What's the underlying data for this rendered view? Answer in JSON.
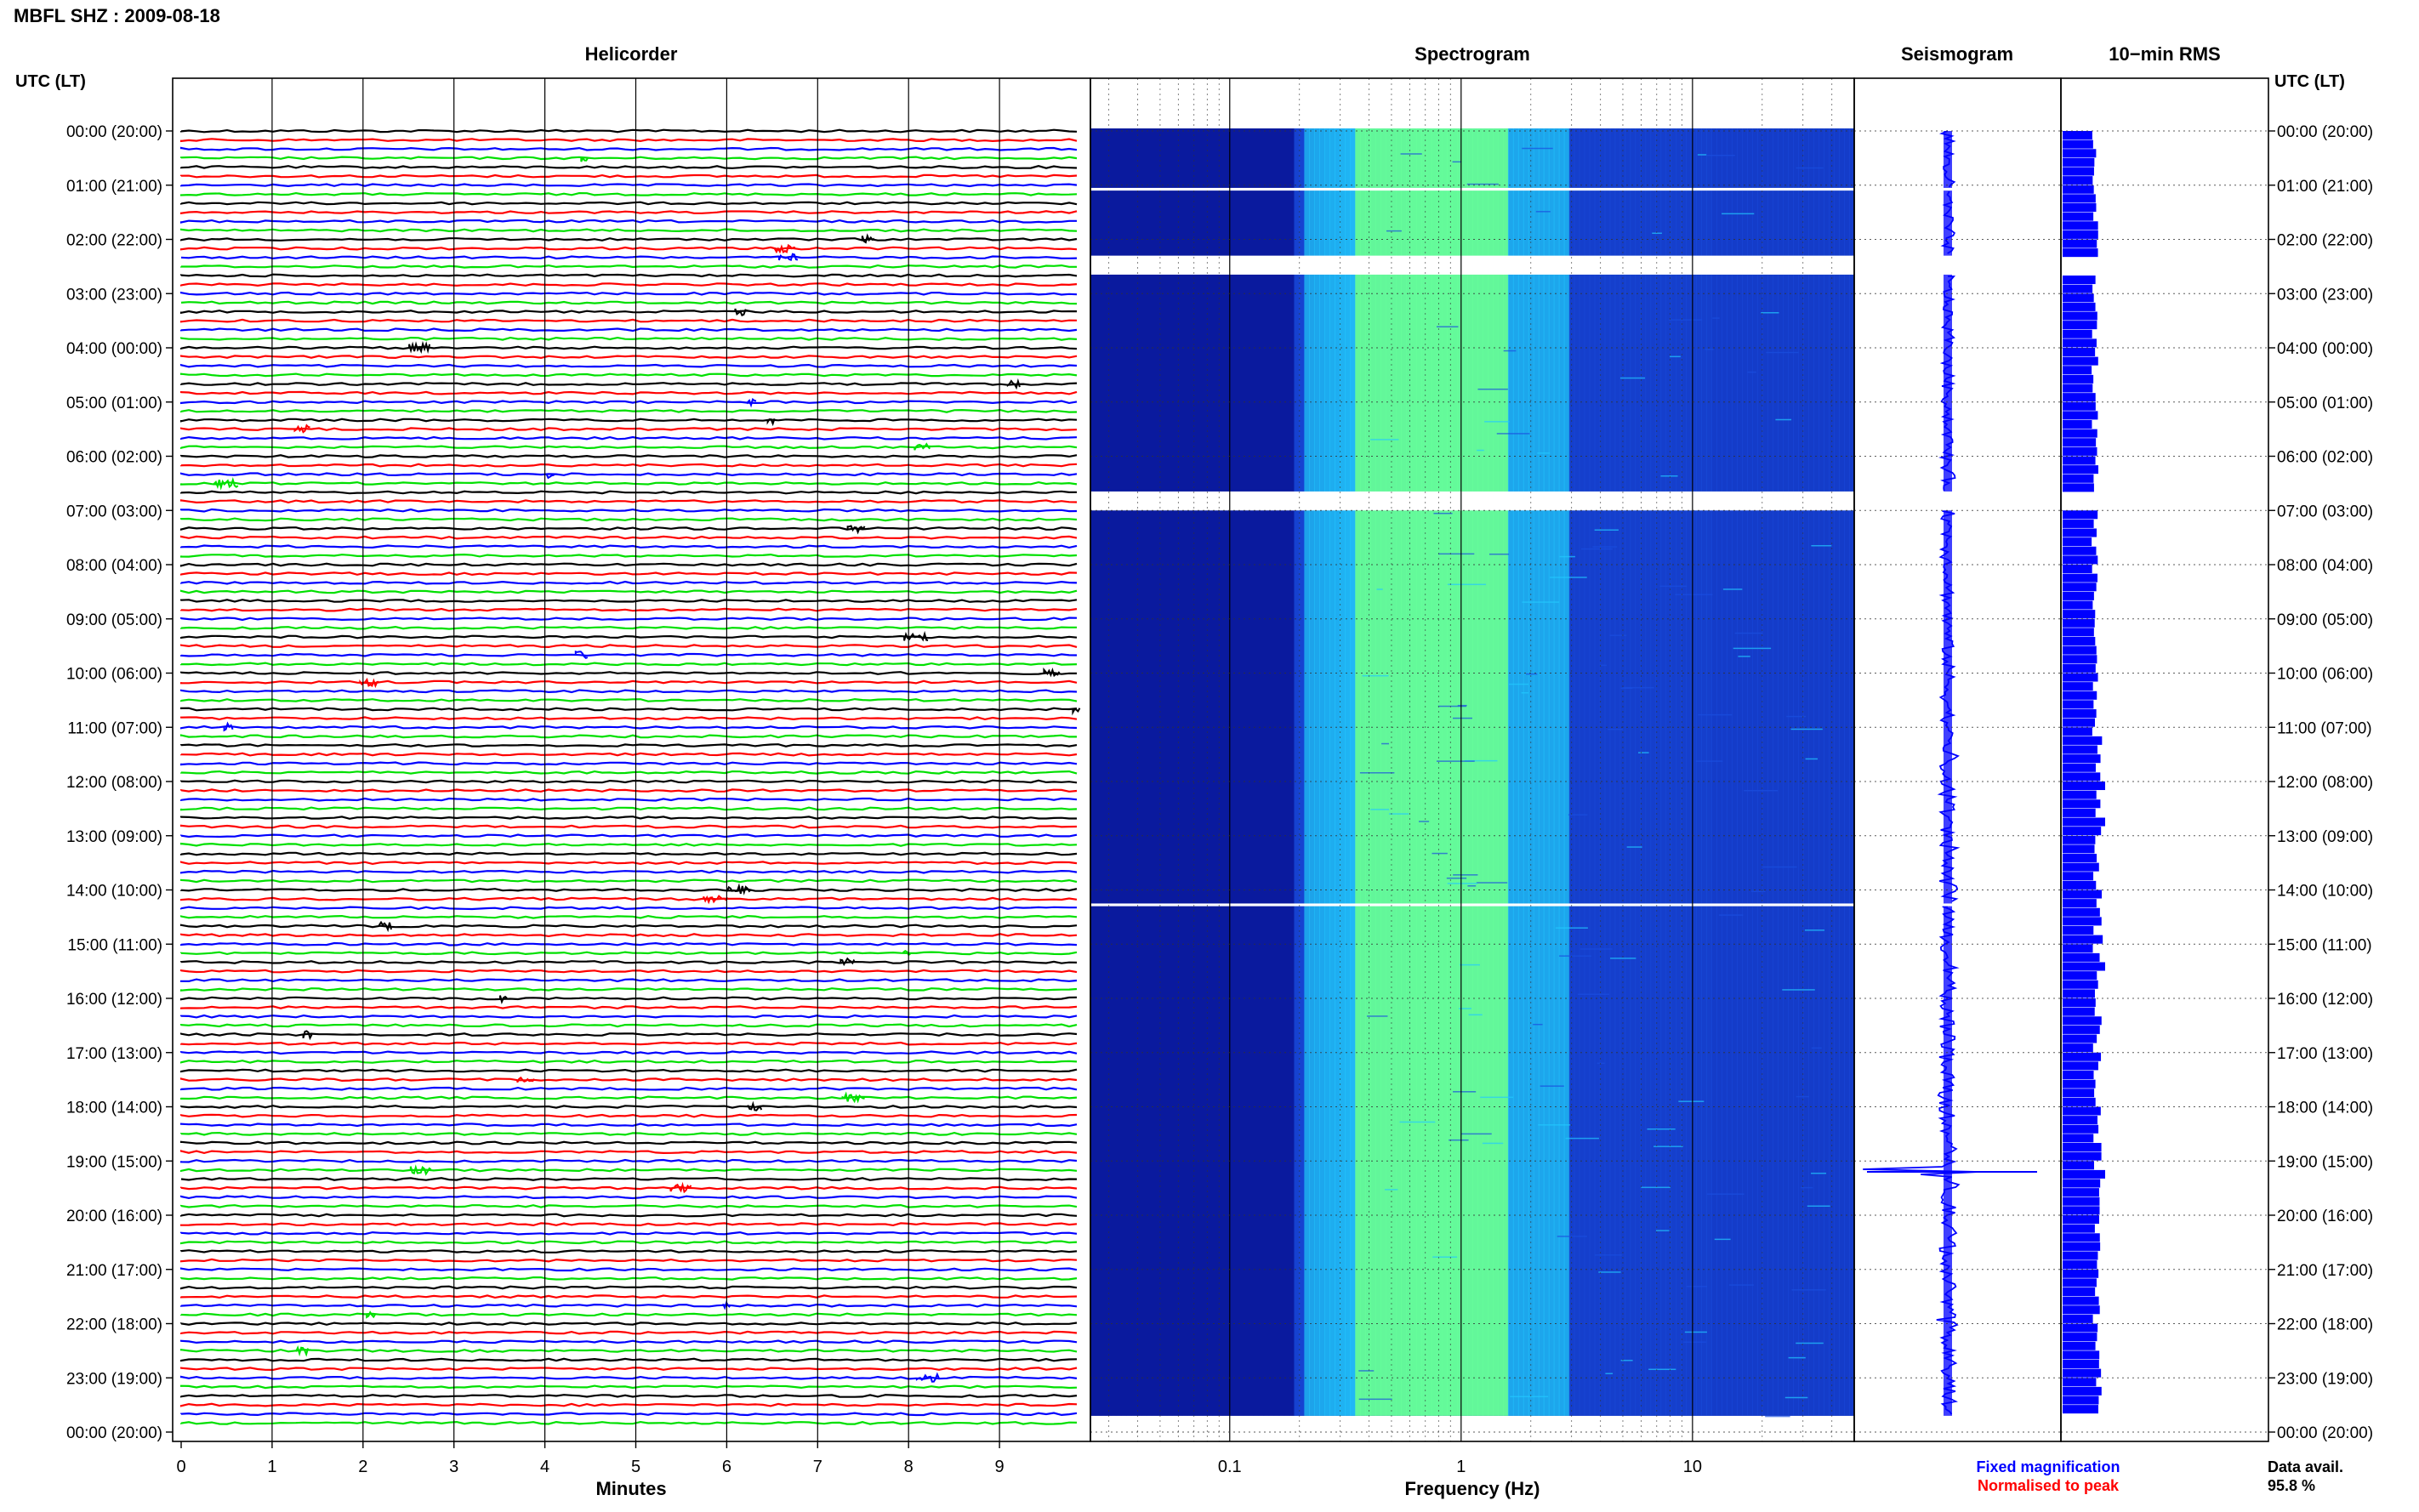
{
  "header": {
    "title": "MBFL SHZ : 2009-08-18",
    "utc_label_left": "UTC (LT)",
    "utc_label_right": "UTC (LT)"
  },
  "chart_data": [
    {
      "type": "line",
      "title": "Helicorder",
      "xlabel": "Minutes",
      "ylabel": "",
      "x_ticks": [
        "0",
        "1",
        "2",
        "3",
        "4",
        "5",
        "6",
        "7",
        "8",
        "9"
      ],
      "xlim": [
        0,
        10
      ],
      "traces_per_hour": 6,
      "trace_color_cycle": [
        "#000000",
        "#ff0000",
        "#0000ff",
        "#00e000"
      ],
      "y_ticks": [
        "00:00 (20:00)",
        "01:00 (21:00)",
        "02:00 (22:00)",
        "03:00 (23:00)",
        "04:00 (00:00)",
        "05:00 (01:00)",
        "06:00 (02:00)",
        "07:00 (03:00)",
        "08:00 (04:00)",
        "09:00 (05:00)",
        "10:00 (06:00)",
        "11:00 (07:00)",
        "12:00 (08:00)",
        "13:00 (09:00)",
        "14:00 (10:00)",
        "15:00 (11:00)",
        "16:00 (12:00)",
        "17:00 (13:00)",
        "18:00 (14:00)",
        "19:00 (15:00)",
        "20:00 (16:00)",
        "21:00 (17:00)",
        "22:00 (18:00)",
        "23:00 (19:00)",
        "00:00 (20:00)"
      ]
    },
    {
      "type": "heatmap",
      "title": "Spectrogram",
      "xlabel": "Frequency (Hz)",
      "x_scale": "log",
      "xlim": [
        0.025,
        50
      ],
      "x_ticks": [
        "0.1",
        "1",
        "10"
      ],
      "x_tick_values": [
        0.1,
        1,
        10
      ],
      "gaps_utc_hours": [
        [
          1.05,
          1.1
        ],
        [
          2.3,
          2.65
        ],
        [
          6.65,
          7.0
        ],
        [
          14.25,
          14.3
        ]
      ],
      "data_end_utc_hour": 23.7,
      "colormap": [
        "#0a1a9e",
        "#1a4fe0",
        "#22c9ff",
        "#66ff9a"
      ]
    },
    {
      "type": "line",
      "title": "Seismogram",
      "legend": [
        "Fixed magnification",
        "Normalised to peak"
      ],
      "legend_colors": [
        "#0000ff",
        "#ff0000"
      ],
      "largest_event_utc_hour": 19.2
    },
    {
      "type": "bar",
      "title": "10−min RMS",
      "bar_color": "#0000ff",
      "peaks_utc_hours": [
        12.0,
        12.6,
        15.3,
        19.2
      ],
      "data_avail_label": "Data avail.",
      "data_avail_value": "95.8 %"
    }
  ]
}
